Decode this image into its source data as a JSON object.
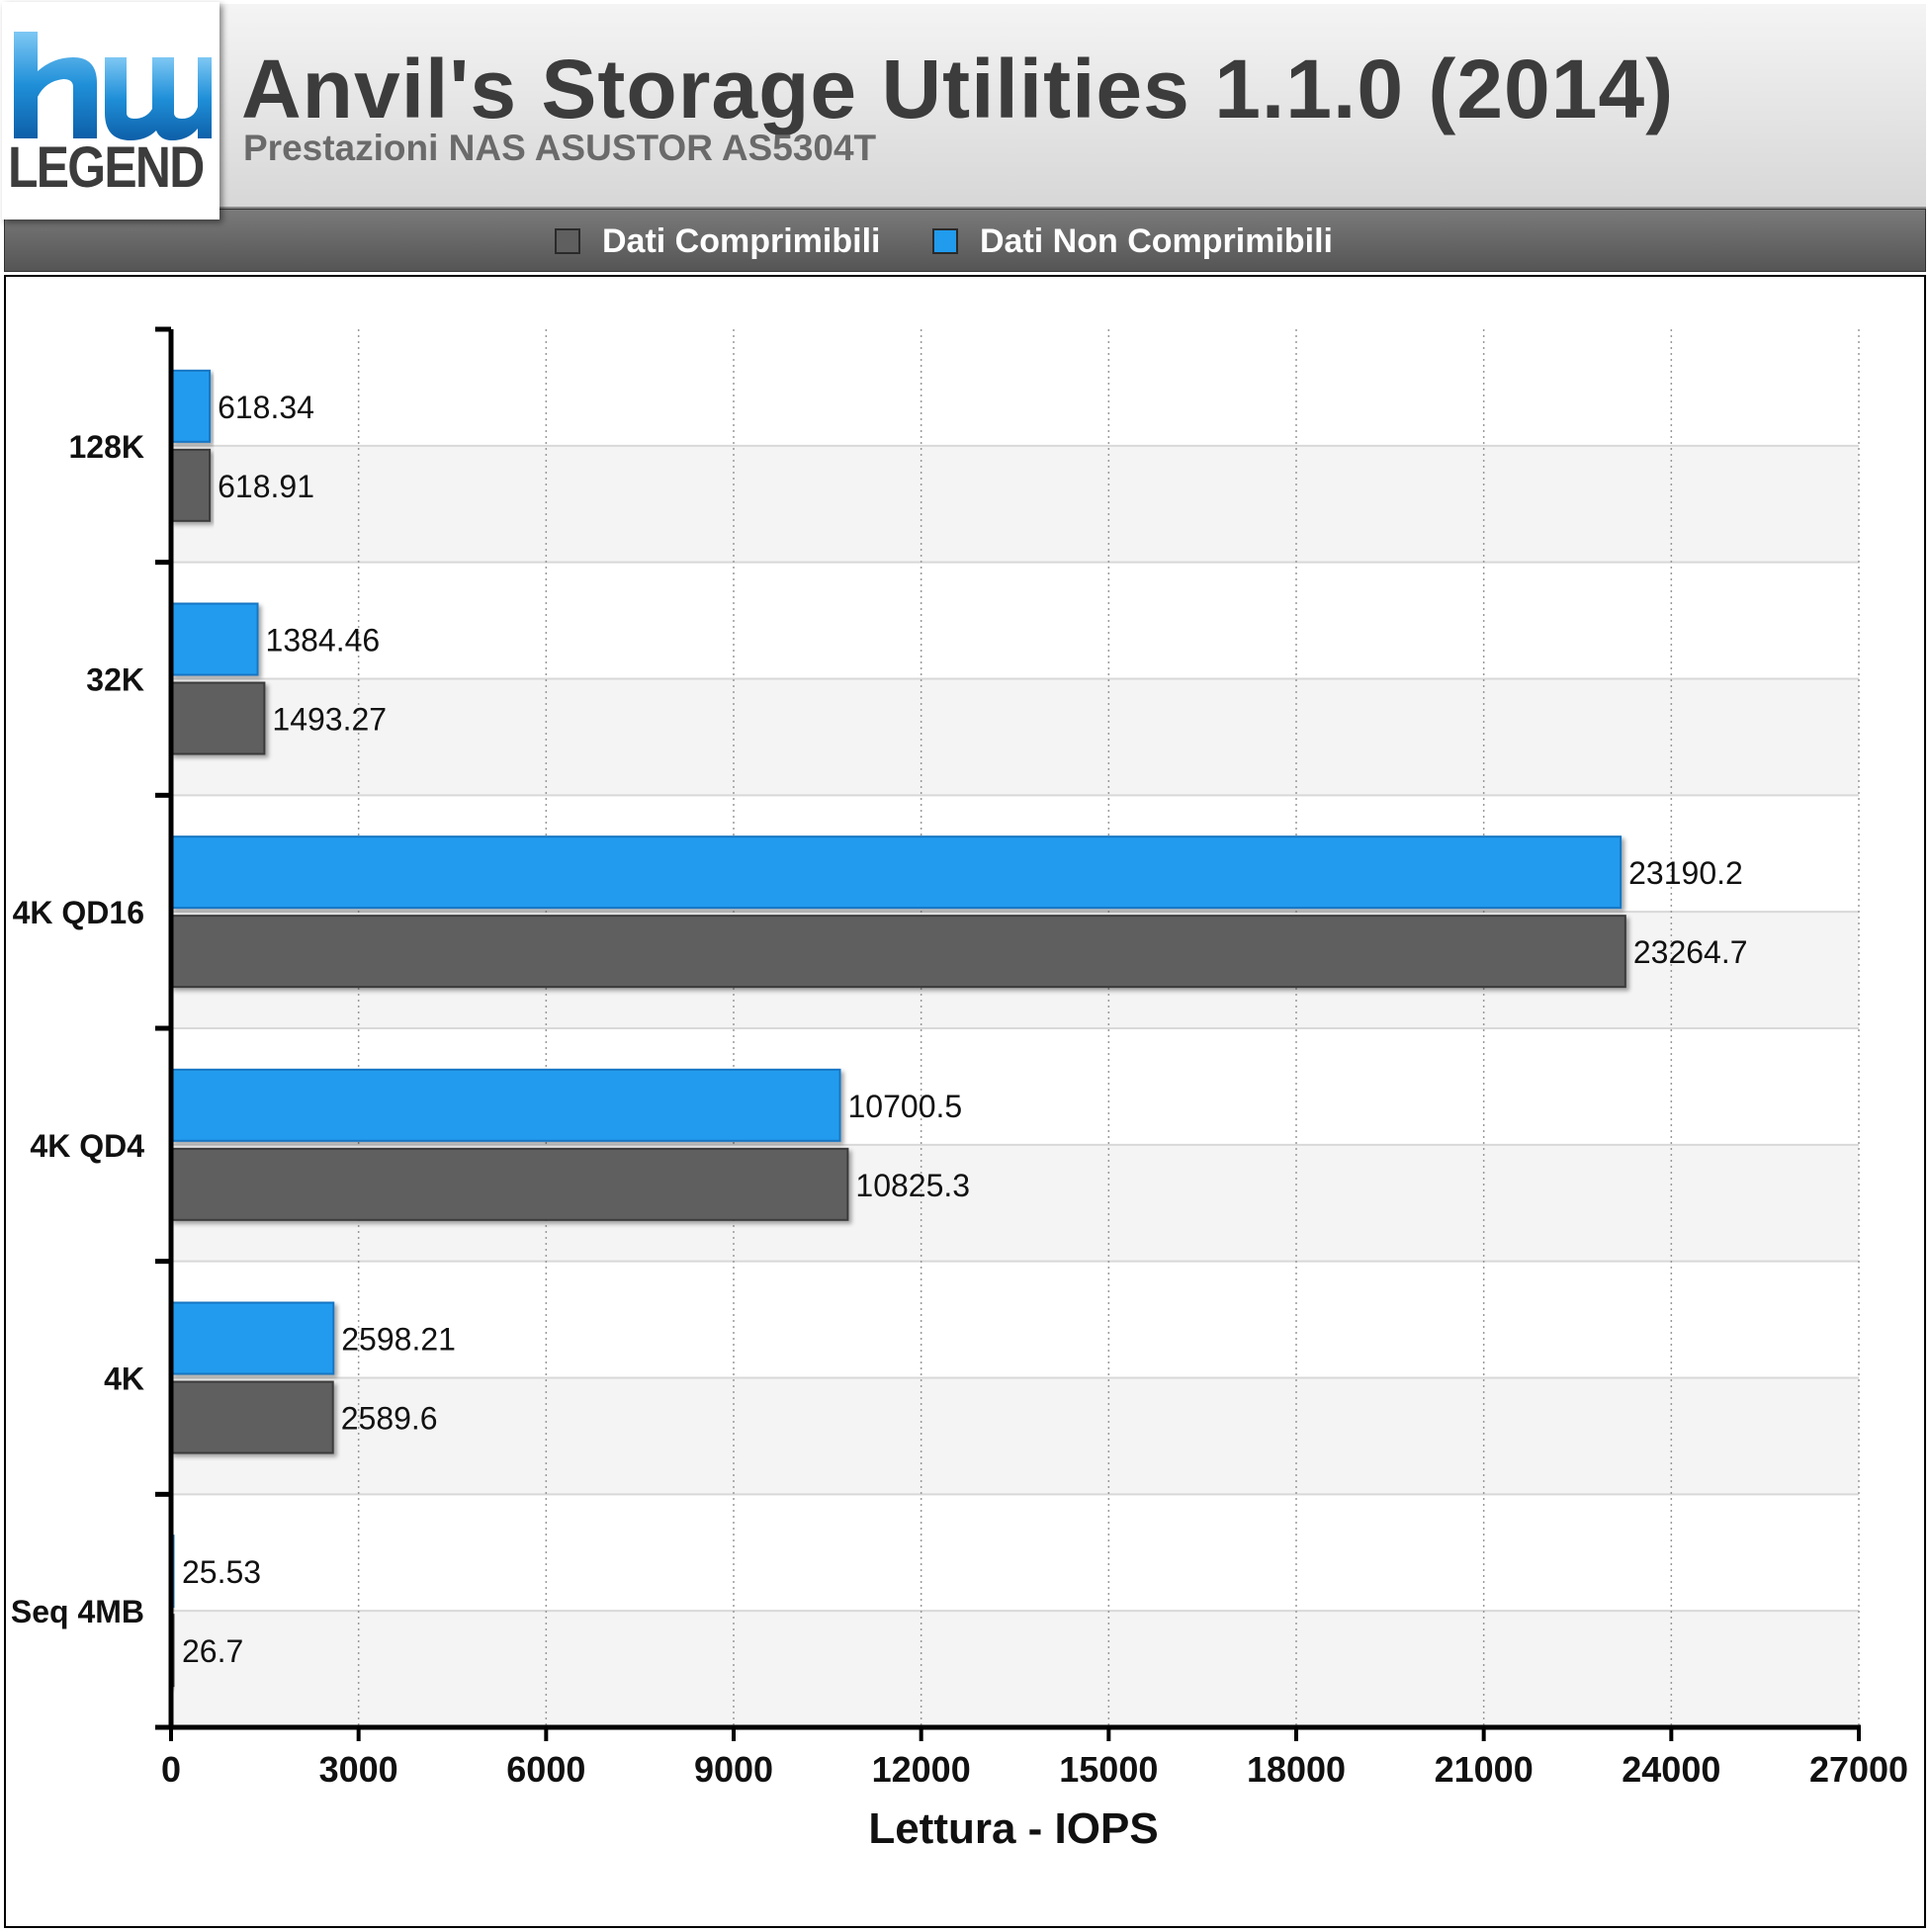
{
  "header": {
    "logo_text": "LEGEND",
    "title": "Anvil's Storage Utilities 1.1.0 (2014)",
    "subtitle": "Prestazioni NAS ASUSTOR AS5304T"
  },
  "legend": {
    "items": [
      {
        "label": "Dati Comprimibili",
        "color": "#5f5f5f"
      },
      {
        "label": "Dati Non Comprimibili",
        "color": "#219bee"
      }
    ]
  },
  "colors": {
    "compressible": "#5f5f5f",
    "non_compressible": "#219bee",
    "band_alt": "#f4f4f4",
    "grid": "#9a9a9a"
  },
  "chart_data": {
    "type": "bar",
    "orientation": "horizontal",
    "title": "Anvil's Storage Utilities 1.1.0 (2014)",
    "subtitle": "Prestazioni NAS ASUSTOR AS5304T",
    "xlabel": "Lettura - IOPS",
    "ylabel": "",
    "xlim": [
      0,
      27000
    ],
    "xticks": [
      0,
      3000,
      6000,
      9000,
      12000,
      15000,
      18000,
      21000,
      24000,
      27000
    ],
    "categories": [
      "128K",
      "32K",
      "4K QD16",
      "4K QD4",
      "4K",
      "Seq 4MB"
    ],
    "series": [
      {
        "name": "Dati Non Comprimibili",
        "color": "#219bee",
        "values": [
          618.34,
          1384.46,
          23190.2,
          10700.5,
          2598.21,
          25.53
        ],
        "labels": [
          "618.34",
          "1384.46",
          "23190.2",
          "10700.5",
          "2598.21",
          "25.53"
        ]
      },
      {
        "name": "Dati Comprimibili",
        "color": "#5f5f5f",
        "values": [
          618.91,
          1493.27,
          23264.7,
          10825.3,
          2589.6,
          26.7
        ],
        "labels": [
          "618.91",
          "1493.27",
          "23264.7",
          "10825.3",
          "2589.6",
          "26.7"
        ]
      }
    ],
    "grid": "vertical dotted",
    "legend_position": "top"
  }
}
